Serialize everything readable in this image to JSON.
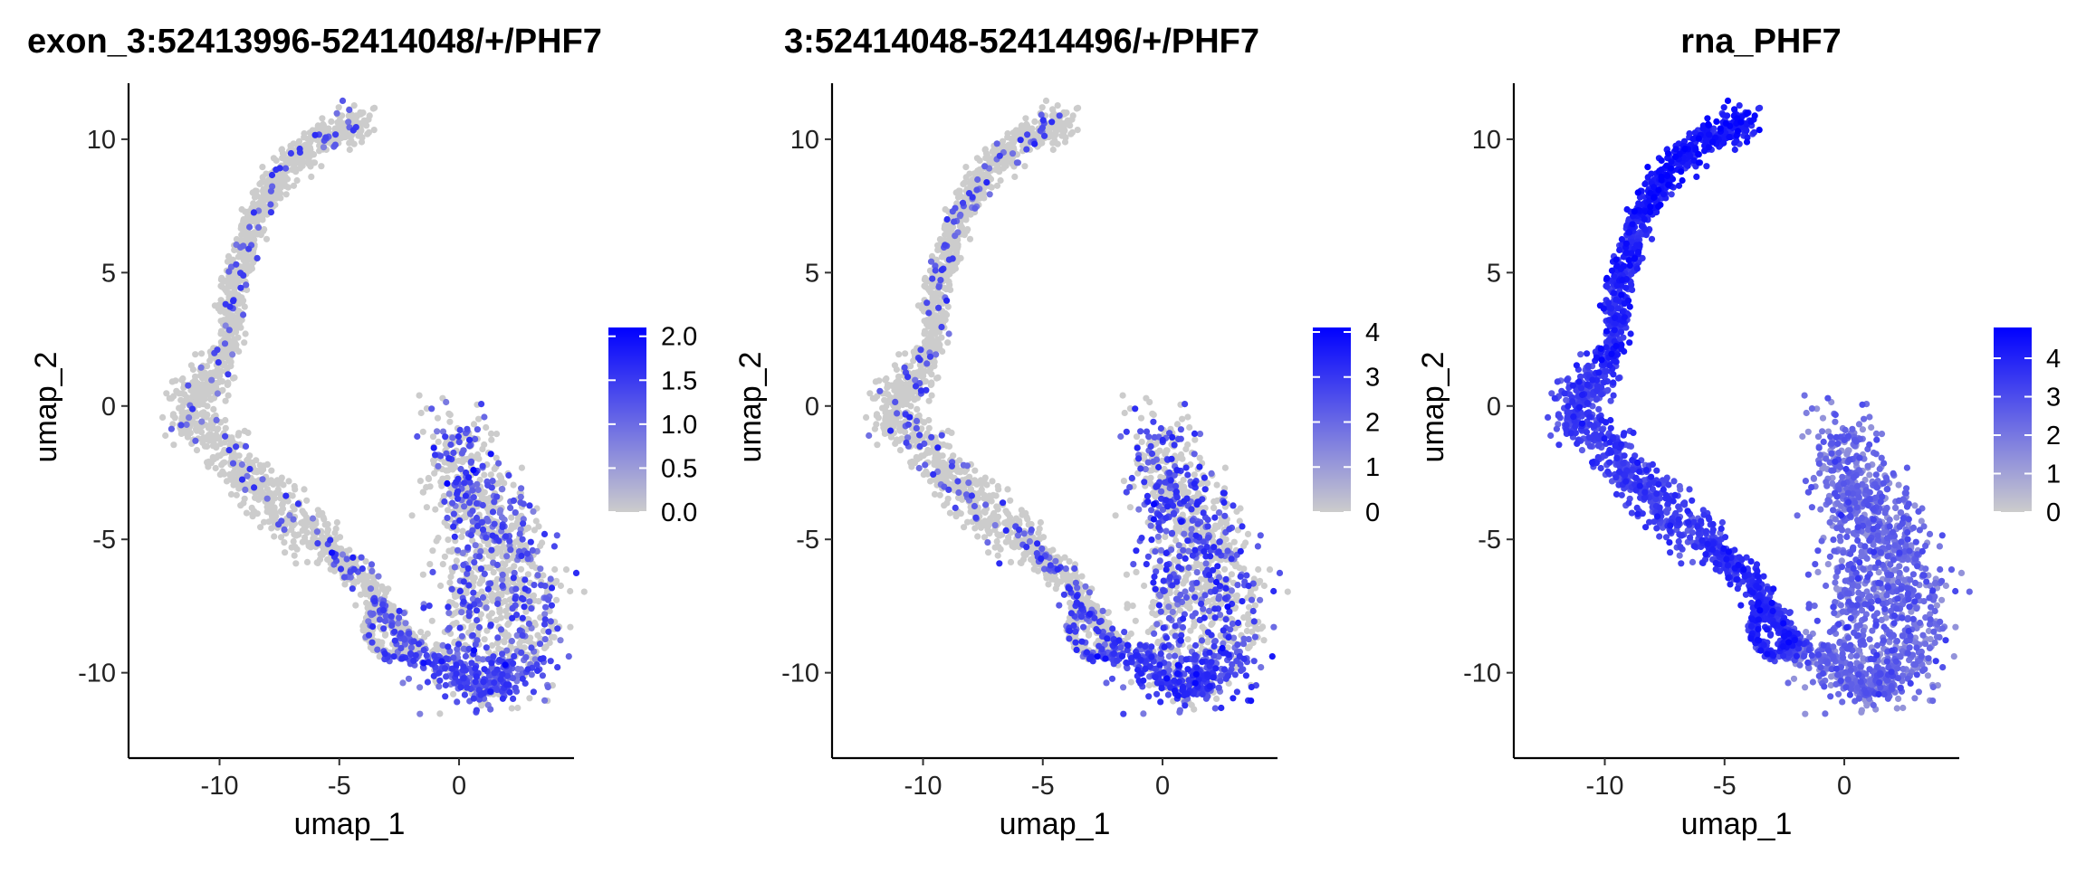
{
  "chart_data": [
    {
      "type": "scatter",
      "title": "exon_3:52413996-52414048/+/PHF7",
      "xlabel": "umap_1",
      "ylabel": "umap_2",
      "xlim": [
        -13.8,
        4.8
      ],
      "ylim": [
        -13.2,
        12.1
      ],
      "x_ticks": [
        -10,
        -5,
        0
      ],
      "y_ticks": [
        -10,
        -5,
        0,
        5,
        10
      ],
      "x_tick_labels": [
        "-10",
        "-5",
        "0"
      ],
      "y_tick_labels": [
        "-10",
        "-5",
        "0",
        "5",
        "10"
      ],
      "grid": false,
      "legend_position": "right",
      "color_scale": {
        "low": "#cccccc",
        "high": "#0000ff",
        "min": 0,
        "max": 2.1,
        "ticks": [
          0,
          0.5,
          1,
          1.5,
          2
        ],
        "tick_labels": [
          "0.0",
          "0.5",
          "1.0",
          "1.5",
          "2.0"
        ]
      },
      "expression_profile": "sparse",
      "points_description": "UMAP embedding of cells colored by expression; most cells near 0 (grey), scattered cells up to 2.0 (blue)"
    },
    {
      "type": "scatter",
      "title": "3:52414048-52414496/+/PHF7",
      "xlabel": "umap_1",
      "ylabel": "umap_2",
      "xlim": [
        -13.8,
        4.8
      ],
      "ylim": [
        -13.2,
        12.1
      ],
      "x_ticks": [
        -10,
        -5,
        0
      ],
      "y_ticks": [
        -10,
        -5,
        0,
        5,
        10
      ],
      "x_tick_labels": [
        "-10",
        "-5",
        "0"
      ],
      "y_tick_labels": [
        "-10",
        "-5",
        "0",
        "5",
        "10"
      ],
      "grid": false,
      "legend_position": "right",
      "color_scale": {
        "low": "#cccccc",
        "high": "#0000ff",
        "min": 0,
        "max": 4.1,
        "ticks": [
          0,
          1,
          2,
          3,
          4
        ],
        "tick_labels": [
          "0",
          "1",
          "2",
          "3",
          "4"
        ]
      },
      "expression_profile": "moderate",
      "points_description": "UMAP embedding of cells colored by expression; moderate expression in lower arm, up to 4"
    },
    {
      "type": "scatter",
      "title": "rna_PHF7",
      "xlabel": "umap_1",
      "ylabel": "umap_2",
      "xlim": [
        -13.8,
        4.8
      ],
      "ylim": [
        -13.2,
        12.1
      ],
      "x_ticks": [
        -10,
        -5,
        0
      ],
      "y_ticks": [
        -10,
        -5,
        0,
        5,
        10
      ],
      "x_tick_labels": [
        "-10",
        "-5",
        "0"
      ],
      "y_tick_labels": [
        "-10",
        "-5",
        "0",
        "5",
        "10"
      ],
      "grid": false,
      "legend_position": "right",
      "color_scale": {
        "low": "#cccccc",
        "high": "#0000ff",
        "min": 0,
        "max": 4.8,
        "ticks": [
          0,
          1,
          2,
          3,
          4
        ],
        "tick_labels": [
          "0",
          "1",
          "2",
          "3",
          "4"
        ]
      },
      "expression_profile": "broad",
      "points_description": "UMAP embedding of cells colored by expression; high expression along upper arm (blue), lower in right cluster"
    }
  ],
  "trajectory_umap": {
    "path": [
      [
        -3.8,
        10.6
      ],
      [
        -5.5,
        10.2
      ],
      [
        -7.2,
        9.0
      ],
      [
        -8.5,
        7.2
      ],
      [
        -9.3,
        5.0
      ],
      [
        -9.6,
        2.5
      ],
      [
        -10.2,
        1.0
      ],
      [
        -11.5,
        0.2
      ],
      [
        -11.2,
        -0.6
      ],
      [
        -10.2,
        -1.2
      ],
      [
        -9.6,
        -1.8
      ],
      [
        -9.0,
        -2.5
      ],
      [
        -8.2,
        -3.2
      ],
      [
        -7.3,
        -3.9
      ],
      [
        -6.2,
        -4.8
      ],
      [
        -5.0,
        -5.6
      ],
      [
        -3.8,
        -6.6
      ],
      [
        -3.2,
        -7.6
      ],
      [
        -2.0,
        -9.2
      ],
      [
        -0.6,
        -9.5
      ],
      [
        0.4,
        -10.6
      ],
      [
        1.8,
        -10.5
      ],
      [
        2.6,
        -9.2
      ],
      [
        2.8,
        -7.5
      ],
      [
        2.6,
        -5.5
      ],
      [
        1.5,
        -4.0
      ],
      [
        0.3,
        -3.0
      ],
      [
        -0.2,
        -1.6
      ],
      [
        -0.3,
        -0.6
      ]
    ],
    "loop": [
      [
        -3.5,
        -7.2
      ],
      [
        -2.6,
        -8.4
      ],
      [
        -2.0,
        -9.0
      ],
      [
        -3.0,
        -9.4
      ],
      [
        -3.8,
        -8.6
      ],
      [
        -3.5,
        -7.2
      ]
    ]
  }
}
